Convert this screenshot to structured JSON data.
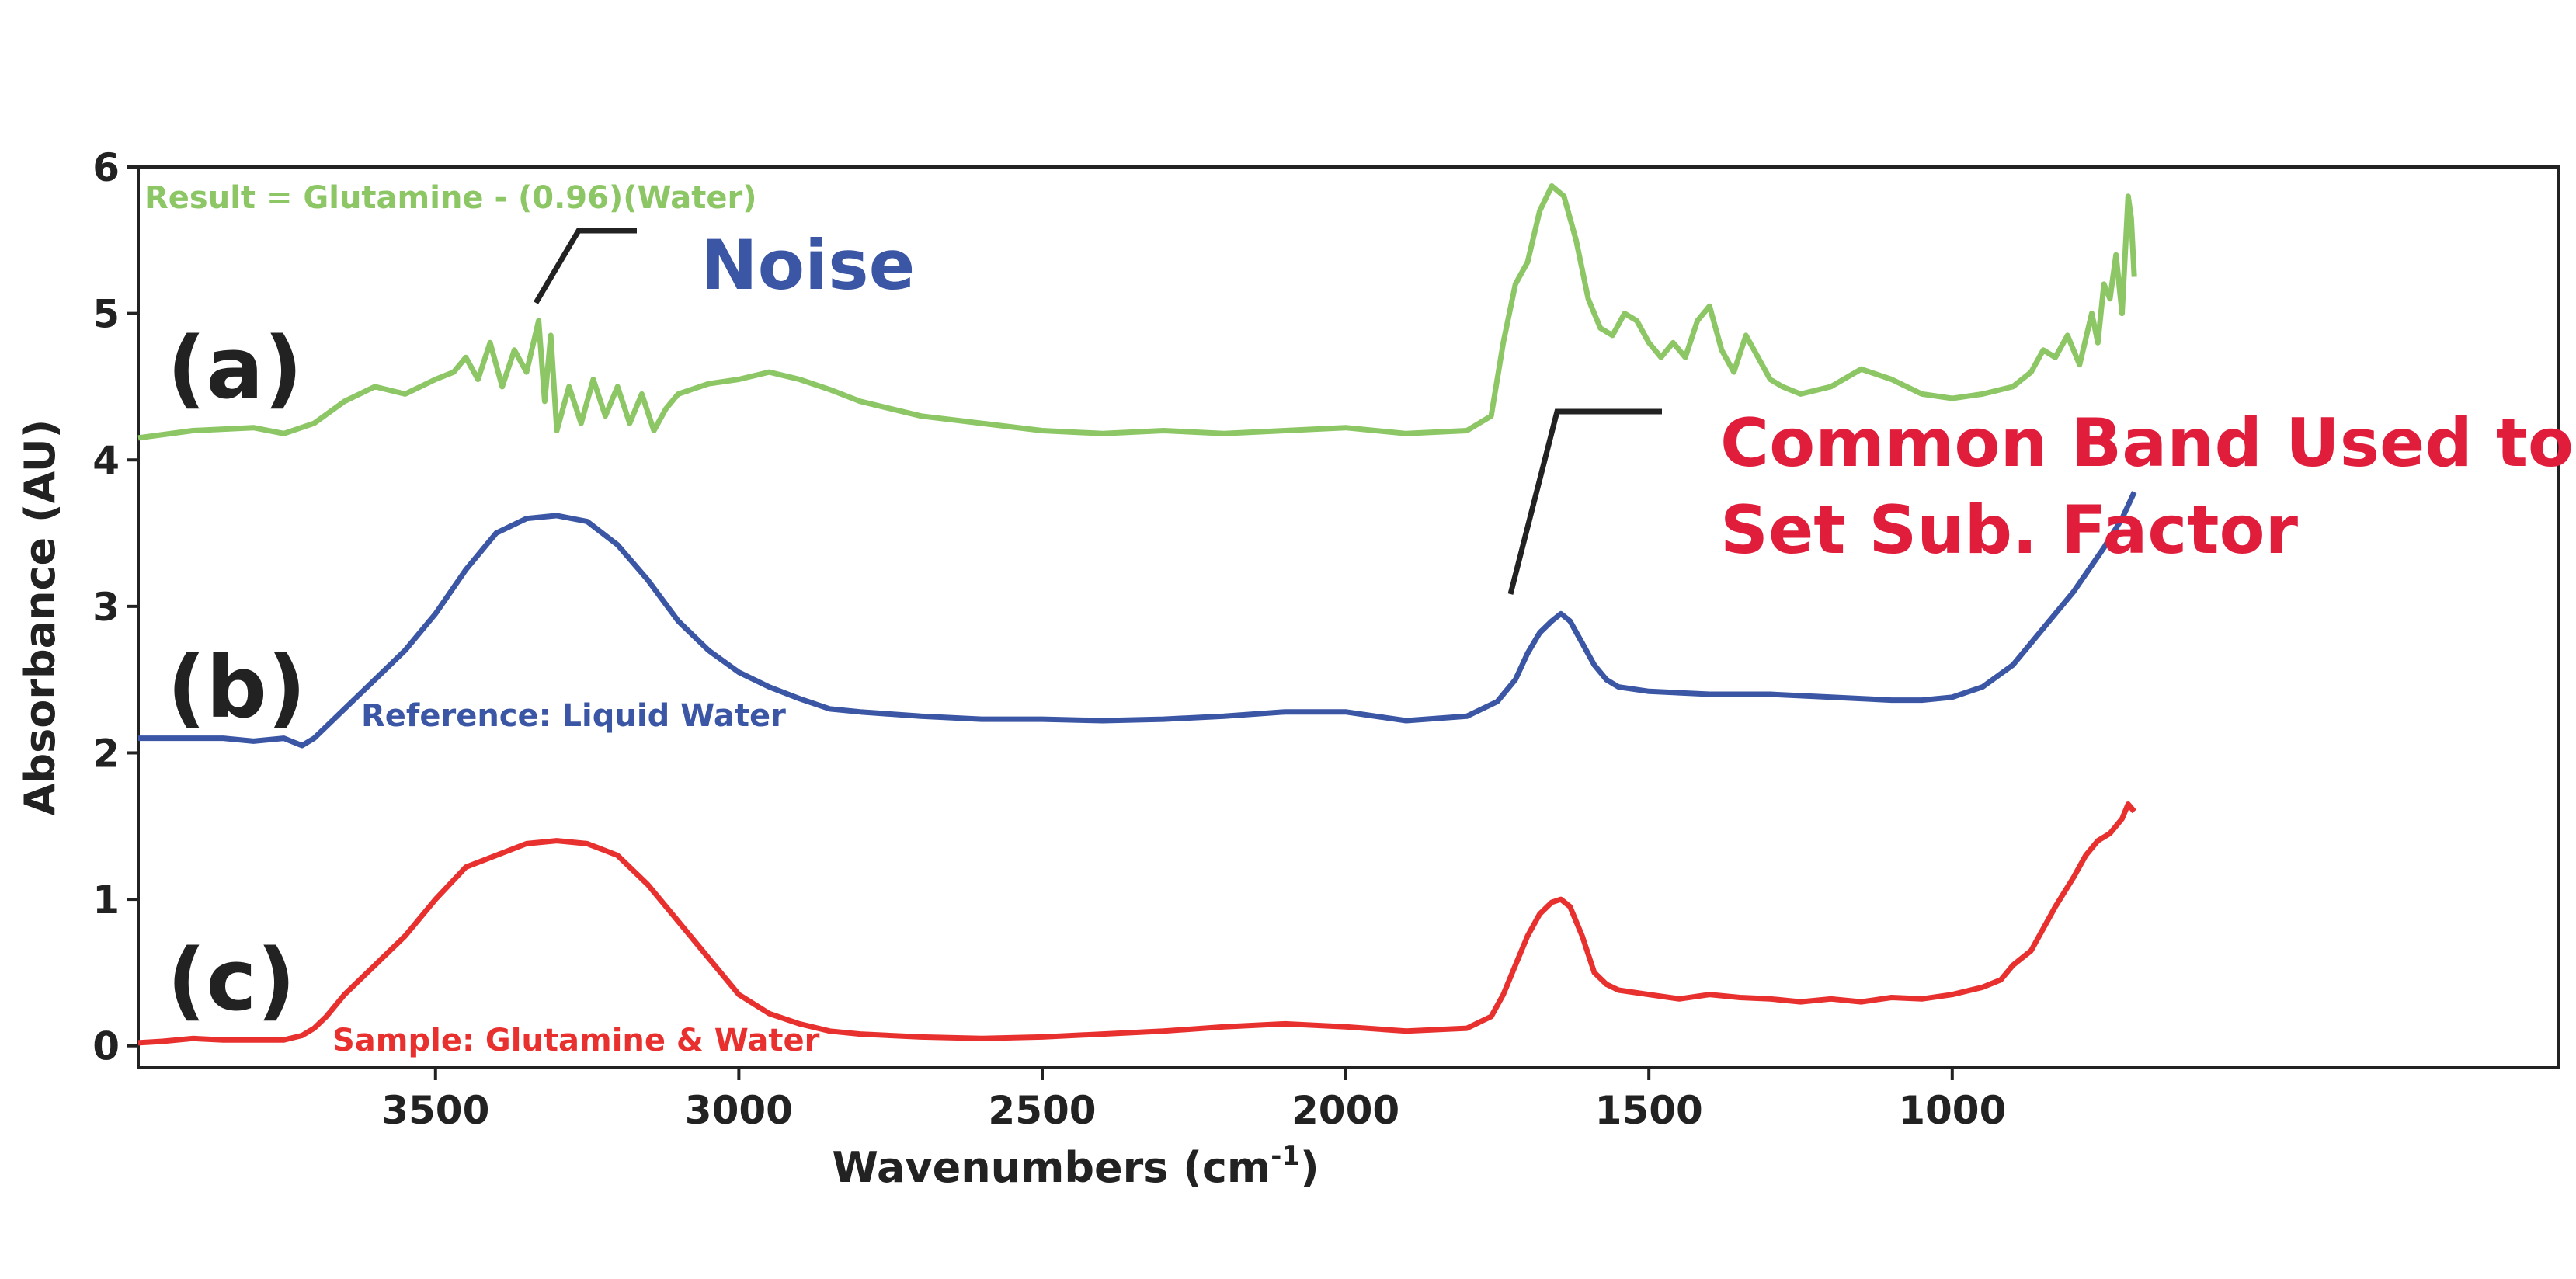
{
  "chart_data": {
    "type": "line",
    "title": "",
    "xlabel": "Wavenumbers (cm",
    "xlabel_superscript": "-1",
    "xlabel_suffix": ")",
    "ylabel": "Absorbance (AU)",
    "xlim": [
      3990,
      0
    ],
    "ylim": [
      -0.15,
      6
    ],
    "x_ticks": [
      3500,
      3000,
      2500,
      2000,
      1500,
      1000
    ],
    "x_tick_labels": [
      "3500",
      "3000",
      "2500",
      "2000",
      "1500",
      "1000"
    ],
    "y_ticks": [
      0,
      1,
      2,
      3,
      4,
      5,
      6
    ],
    "y_tick_labels": [
      "0",
      "1",
      "2",
      "3",
      "4",
      "5",
      "6"
    ],
    "grid": false,
    "series": [
      {
        "name": "Result = Glutamine - (0.96)(Water)",
        "panel": "(a)",
        "color": "#8cc665",
        "x": [
          3990,
          3900,
          3800,
          3750,
          3700,
          3650,
          3600,
          3550,
          3500,
          3470,
          3450,
          3430,
          3410,
          3390,
          3370,
          3350,
          3330,
          3320,
          3310,
          3300,
          3280,
          3260,
          3240,
          3220,
          3200,
          3180,
          3160,
          3140,
          3120,
          3100,
          3050,
          3000,
          2950,
          2900,
          2850,
          2800,
          2700,
          2600,
          2500,
          2400,
          2300,
          2200,
          2100,
          2000,
          1900,
          1800,
          1760,
          1740,
          1720,
          1700,
          1680,
          1660,
          1640,
          1620,
          1600,
          1580,
          1560,
          1540,
          1520,
          1500,
          1480,
          1460,
          1440,
          1420,
          1400,
          1380,
          1360,
          1340,
          1320,
          1300,
          1280,
          1250,
          1200,
          1150,
          1100,
          1050,
          1000,
          950,
          900,
          870,
          850,
          830,
          810,
          790,
          770,
          760,
          750,
          740,
          730,
          720,
          710,
          705,
          700
        ],
        "y": [
          4.15,
          4.2,
          4.22,
          4.18,
          4.25,
          4.4,
          4.5,
          4.45,
          4.55,
          4.6,
          4.7,
          4.55,
          4.8,
          4.5,
          4.75,
          4.6,
          4.95,
          4.4,
          4.85,
          4.2,
          4.5,
          4.25,
          4.55,
          4.3,
          4.5,
          4.25,
          4.45,
          4.2,
          4.35,
          4.45,
          4.52,
          4.55,
          4.6,
          4.55,
          4.48,
          4.4,
          4.3,
          4.25,
          4.2,
          4.18,
          4.2,
          4.18,
          4.2,
          4.22,
          4.18,
          4.2,
          4.3,
          4.8,
          5.2,
          5.35,
          5.7,
          5.87,
          5.8,
          5.5,
          5.1,
          4.9,
          4.85,
          5.0,
          4.95,
          4.8,
          4.7,
          4.8,
          4.7,
          4.95,
          5.05,
          4.75,
          4.6,
          4.85,
          4.7,
          4.55,
          4.5,
          4.45,
          4.5,
          4.62,
          4.55,
          4.45,
          4.42,
          4.45,
          4.5,
          4.6,
          4.75,
          4.7,
          4.85,
          4.65,
          5.0,
          4.8,
          5.2,
          5.1,
          5.4,
          5.0,
          5.8,
          5.65,
          5.25
        ]
      },
      {
        "name": "Reference: Liquid Water",
        "panel": "(b)",
        "color": "#3a56a4",
        "x": [
          3990,
          3900,
          3850,
          3800,
          3750,
          3720,
          3700,
          3650,
          3600,
          3550,
          3500,
          3450,
          3400,
          3350,
          3300,
          3250,
          3200,
          3150,
          3100,
          3050,
          3000,
          2950,
          2900,
          2850,
          2800,
          2700,
          2600,
          2500,
          2400,
          2300,
          2200,
          2100,
          2000,
          1900,
          1800,
          1750,
          1720,
          1700,
          1680,
          1660,
          1645,
          1630,
          1610,
          1590,
          1570,
          1550,
          1500,
          1400,
          1300,
          1200,
          1100,
          1050,
          1000,
          950,
          900,
          850,
          800,
          750,
          720,
          700
        ],
        "y": [
          2.1,
          2.1,
          2.1,
          2.08,
          2.1,
          2.05,
          2.1,
          2.3,
          2.5,
          2.7,
          2.95,
          3.25,
          3.5,
          3.6,
          3.62,
          3.58,
          3.42,
          3.18,
          2.9,
          2.7,
          2.55,
          2.45,
          2.37,
          2.3,
          2.28,
          2.25,
          2.23,
          2.23,
          2.22,
          2.23,
          2.25,
          2.28,
          2.28,
          2.22,
          2.25,
          2.35,
          2.5,
          2.68,
          2.82,
          2.9,
          2.95,
          2.9,
          2.75,
          2.6,
          2.5,
          2.45,
          2.42,
          2.4,
          2.4,
          2.38,
          2.36,
          2.36,
          2.38,
          2.45,
          2.6,
          2.85,
          3.1,
          3.4,
          3.6,
          3.78
        ]
      },
      {
        "name": "Sample: Glutamine & Water",
        "panel": "(c)",
        "color": "#e8312f",
        "x": [
          3990,
          3950,
          3900,
          3850,
          3800,
          3750,
          3720,
          3700,
          3680,
          3650,
          3600,
          3550,
          3500,
          3450,
          3400,
          3350,
          3300,
          3250,
          3200,
          3150,
          3100,
          3050,
          3000,
          2950,
          2900,
          2850,
          2800,
          2700,
          2600,
          2500,
          2400,
          2300,
          2200,
          2100,
          2000,
          1900,
          1800,
          1760,
          1740,
          1720,
          1700,
          1680,
          1660,
          1645,
          1630,
          1610,
          1590,
          1570,
          1550,
          1500,
          1450,
          1400,
          1350,
          1300,
          1250,
          1200,
          1150,
          1100,
          1050,
          1000,
          950,
          920,
          900,
          870,
          850,
          830,
          800,
          780,
          760,
          740,
          720,
          710,
          700
        ],
        "y": [
          0.02,
          0.03,
          0.05,
          0.04,
          0.04,
          0.04,
          0.07,
          0.12,
          0.2,
          0.35,
          0.55,
          0.75,
          1.0,
          1.22,
          1.3,
          1.38,
          1.4,
          1.38,
          1.3,
          1.1,
          0.85,
          0.6,
          0.35,
          0.22,
          0.15,
          0.1,
          0.08,
          0.06,
          0.05,
          0.06,
          0.08,
          0.1,
          0.13,
          0.15,
          0.13,
          0.1,
          0.12,
          0.2,
          0.35,
          0.55,
          0.75,
          0.9,
          0.98,
          1.0,
          0.95,
          0.75,
          0.5,
          0.42,
          0.38,
          0.35,
          0.32,
          0.35,
          0.33,
          0.32,
          0.3,
          0.32,
          0.3,
          0.33,
          0.32,
          0.35,
          0.4,
          0.45,
          0.55,
          0.65,
          0.8,
          0.95,
          1.15,
          1.3,
          1.4,
          1.45,
          1.55,
          1.65,
          1.6
        ]
      }
    ],
    "panel_labels": [
      "(a)",
      "(b)",
      "(c)"
    ],
    "annotations": [
      {
        "text": "Noise",
        "color": "#3a56a4",
        "points_to": "(a) 3350"
      },
      {
        "text_lines": [
          "Common Band Used to",
          "Set Sub. Factor"
        ],
        "color": "#e01e3c",
        "points_to": "(b) 1645"
      }
    ]
  }
}
